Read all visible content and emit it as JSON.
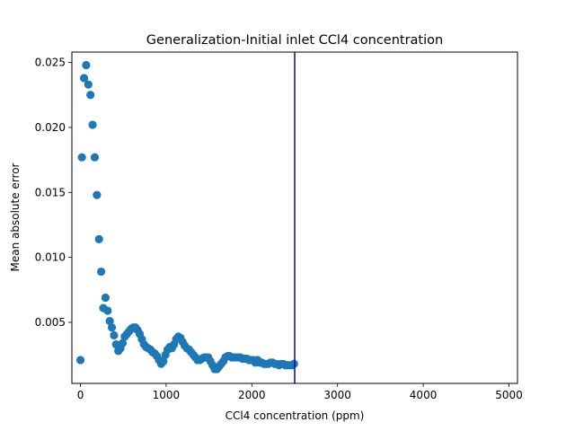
{
  "chart_data": {
    "type": "scatter",
    "title": "Generalization-Initial inlet CCl4 concentration",
    "xlabel": "CCl4 concentration (ppm)",
    "ylabel": "Mean absolute error",
    "xlim": [
      -100,
      5100
    ],
    "ylim": [
      0.0003,
      0.0258
    ],
    "xticks": [
      0,
      1000,
      2000,
      3000,
      4000,
      5000
    ],
    "xtick_labels": [
      "0",
      "1000",
      "2000",
      "3000",
      "4000",
      "5000"
    ],
    "yticks": [
      0.005,
      0.01,
      0.015,
      0.02,
      0.025
    ],
    "ytick_labels": [
      "0.005",
      "0.010",
      "0.015",
      "0.020",
      "0.025"
    ],
    "grid": false,
    "point_color": "#1f77b4",
    "vline": {
      "x": 2500,
      "color": "#0000cc"
    },
    "series": [
      {
        "x": [
          0,
          17,
          42,
          67,
          92,
          117,
          142,
          167,
          192,
          217,
          242,
          267,
          292,
          317,
          342,
          367,
          392,
          417,
          442,
          467,
          492,
          517,
          542,
          567,
          592,
          617,
          642,
          667,
          692,
          717,
          742,
          767,
          792,
          817,
          842,
          867,
          892,
          917,
          942,
          967,
          992,
          1017,
          1042,
          1067,
          1092,
          1117,
          1142,
          1167,
          1192,
          1217,
          1242,
          1267,
          1292,
          1317,
          1342,
          1367,
          1392,
          1417,
          1442,
          1467,
          1492,
          1517,
          1542,
          1567,
          1592,
          1617,
          1642,
          1667,
          1692,
          1717,
          1742,
          1767,
          1792,
          1817,
          1842,
          1867,
          1892,
          1917,
          1942,
          1967,
          1992,
          2017,
          2042,
          2067,
          2092,
          2117,
          2142,
          2167,
          2192,
          2217,
          2242,
          2267,
          2292,
          2317,
          2342,
          2367,
          2392,
          2417,
          2442,
          2467,
          2492
        ],
        "y": [
          0.0021,
          0.0177,
          0.0238,
          0.0248,
          0.0233,
          0.0225,
          0.0202,
          0.0177,
          0.0148,
          0.0114,
          0.0089,
          0.0061,
          0.0069,
          0.0059,
          0.0051,
          0.0046,
          0.004,
          0.0033,
          0.0028,
          0.003,
          0.0034,
          0.0039,
          0.0041,
          0.0043,
          0.0045,
          0.0046,
          0.0046,
          0.0044,
          0.0041,
          0.0037,
          0.0033,
          0.0031,
          0.003,
          0.0029,
          0.0027,
          0.0026,
          0.0024,
          0.0021,
          0.0018,
          0.002,
          0.0025,
          0.0029,
          0.0031,
          0.003,
          0.0033,
          0.0037,
          0.0039,
          0.0038,
          0.0035,
          0.0032,
          0.003,
          0.0029,
          0.0027,
          0.0025,
          0.0023,
          0.0021,
          0.0021,
          0.0022,
          0.0023,
          0.0023,
          0.0023,
          0.002,
          0.0017,
          0.0014,
          0.0014,
          0.0016,
          0.0018,
          0.002,
          0.0023,
          0.0024,
          0.0024,
          0.0023,
          0.0023,
          0.0023,
          0.0023,
          0.0023,
          0.0022,
          0.0022,
          0.0022,
          0.0021,
          0.0021,
          0.0021,
          0.0019,
          0.0021,
          0.0019,
          0.0019,
          0.0018,
          0.0018,
          0.0018,
          0.0019,
          0.0019,
          0.0018,
          0.0018,
          0.0017,
          0.0018,
          0.0018,
          0.0017,
          0.0017,
          0.0017,
          0.0017,
          0.0018
        ]
      }
    ]
  }
}
